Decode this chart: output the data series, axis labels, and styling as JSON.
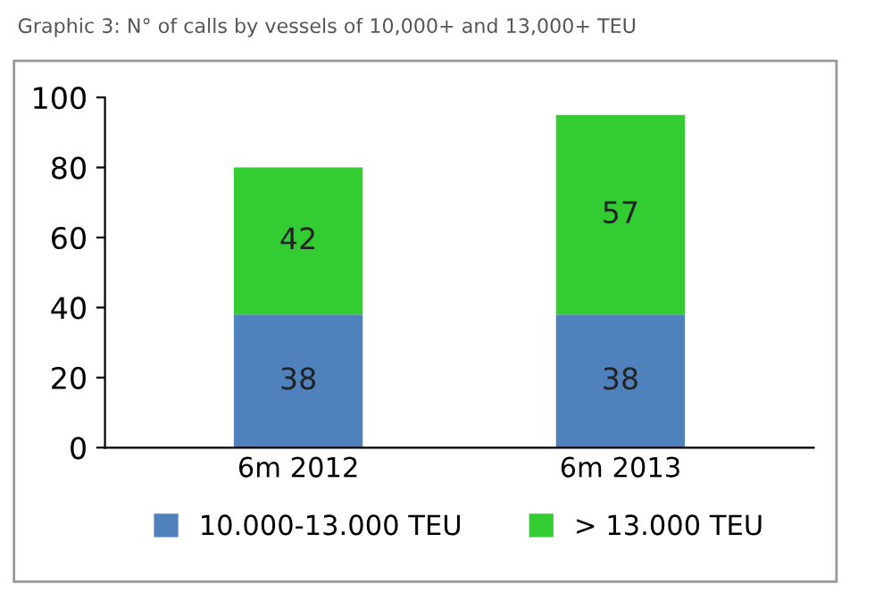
{
  "chart_data": {
    "type": "bar",
    "title": "Graphic 3: N° of calls by vessels of 10,000+ and 13,000+ TEU",
    "categories": [
      "6m 2012",
      "6m 2013"
    ],
    "stacked": true,
    "series": [
      {
        "name": "10.000-13.000 TEU",
        "color": "#4f81bd",
        "values": [
          38,
          38
        ]
      },
      {
        "name": "> 13.000 TEU",
        "color": "#33cc33",
        "values": [
          42,
          57
        ]
      }
    ],
    "ylim": [
      0,
      100
    ],
    "yticks": [
      0,
      20,
      40,
      60,
      80,
      100
    ],
    "data_labels": true,
    "legend": "bottom",
    "grid": false
  }
}
